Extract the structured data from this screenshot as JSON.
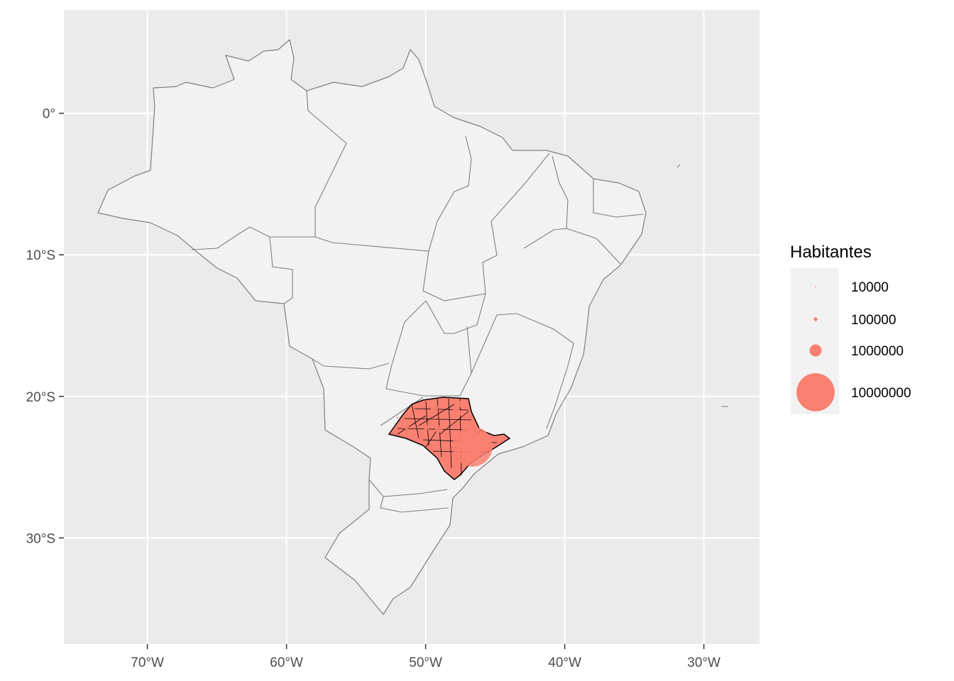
{
  "chart_data": {
    "type": "map",
    "panel_background": "#EBEBEB",
    "gridline_color": "#FFFFFF",
    "land_fill": "#F2F2F2",
    "border_color": "#7F7F7F",
    "highlight_fill": "#FA8072",
    "xlim": [
      -76,
      -26
    ],
    "ylim": [
      -37.5,
      7.3
    ],
    "x_ticks": [
      {
        "value": -70,
        "label": "70°W"
      },
      {
        "value": -60,
        "label": "60°W"
      },
      {
        "value": -50,
        "label": "50°W"
      },
      {
        "value": -40,
        "label": "40°W"
      },
      {
        "value": -30,
        "label": "30°W"
      }
    ],
    "y_ticks": [
      {
        "value": 0,
        "label": "0°"
      },
      {
        "value": -10,
        "label": "10°S"
      },
      {
        "value": -20,
        "label": "20°S"
      },
      {
        "value": -30,
        "label": "30°S"
      }
    ],
    "legend": {
      "title": "Habitantes",
      "placement": "right",
      "entries": [
        {
          "label": "10000",
          "value": 10000
        },
        {
          "label": "100000",
          "value": 100000
        },
        {
          "label": "1000000",
          "value": 1000000
        },
        {
          "label": "10000000",
          "value": 10000000
        }
      ]
    },
    "bubbles": [
      {
        "lon": -46.63,
        "lat": -23.55,
        "population": 11000000
      },
      {
        "lon": -47.06,
        "lat": -22.9,
        "population": 1100000
      },
      {
        "lon": -46.53,
        "lat": -23.46,
        "population": 1250000
      },
      {
        "lon": -46.3,
        "lat": -23.95,
        "population": 430000
      },
      {
        "lon": -47.81,
        "lat": -21.18,
        "population": 670000
      },
      {
        "lon": -49.38,
        "lat": -20.81,
        "population": 440000
      },
      {
        "lon": -47.46,
        "lat": -23.5,
        "population": 650000
      },
      {
        "lon": -45.89,
        "lat": -23.18,
        "population": 700000
      },
      {
        "lon": -51.39,
        "lat": -22.12,
        "population": 220000
      },
      {
        "lon": -49.06,
        "lat": -22.31,
        "population": 360000
      },
      {
        "lon": -48.56,
        "lat": -22.55,
        "population": 20000
      },
      {
        "lon": -52.0,
        "lat": -21.5,
        "population": 15000
      },
      {
        "lon": -50.44,
        "lat": -21.2,
        "population": 190000
      },
      {
        "lon": -49.95,
        "lat": -22.21,
        "population": 230000
      },
      {
        "lon": -47.4,
        "lat": -20.54,
        "population": 350000
      }
    ]
  }
}
